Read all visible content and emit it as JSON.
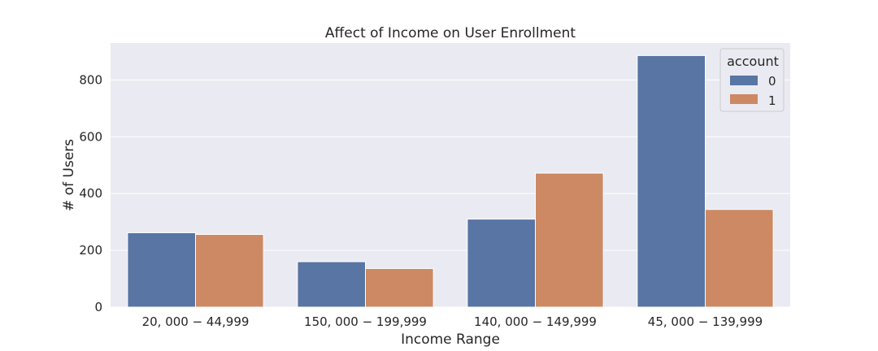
{
  "chart_data": {
    "type": "bar",
    "title": "Affect of Income on User Enrollment",
    "xlabel": "Income Range",
    "ylabel": "# of Users",
    "categories": [
      "20, 000 − 44,999",
      "150, 000 − 199,999",
      "140, 000 − 149,999",
      "45, 000 − 139,999"
    ],
    "series": [
      {
        "name": "0",
        "values": [
          262,
          160,
          310,
          886
        ],
        "color": "#5875a4"
      },
      {
        "name": "1",
        "values": [
          256,
          136,
          472,
          344
        ],
        "color": "#cc8963"
      }
    ],
    "ylim": [
      0,
      930
    ],
    "yticks": [
      0,
      200,
      400,
      600,
      800
    ],
    "grid": true,
    "legend": {
      "title": "account",
      "position": "top-right"
    },
    "background": "#eaeaf2"
  }
}
